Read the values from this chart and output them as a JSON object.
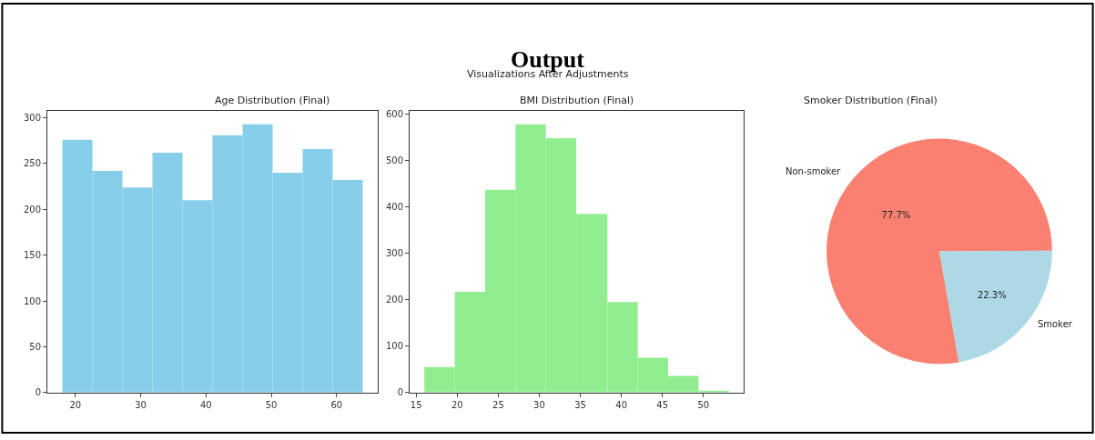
{
  "chart_data": [
    {
      "type": "other",
      "title": "Output",
      "subtitle": "Visualizations After Adjustments"
    },
    {
      "type": "histogram",
      "title": "Age Distribution (Final)",
      "color": "#87ceeb",
      "bins": [
        18,
        22.6,
        27.2,
        31.8,
        36.4,
        41,
        45.6,
        50.2,
        54.8,
        59.4,
        64
      ],
      "values": [
        276,
        242,
        224,
        262,
        210,
        281,
        293,
        240,
        266,
        232
      ],
      "xlim": [
        15.7,
        66.3
      ],
      "xticks": [
        20,
        30,
        40,
        50,
        60
      ],
      "ylim": [
        0,
        307.6
      ],
      "yticks": [
        0,
        50,
        100,
        150,
        200,
        250,
        300
      ]
    },
    {
      "type": "histogram",
      "title": "BMI Distribution (Final)",
      "color": "#90ee90",
      "bins": [
        16,
        19.7,
        23.4,
        27.1,
        30.8,
        34.5,
        38.3,
        42,
        45.7,
        49.4,
        53.1
      ],
      "values": [
        55,
        217,
        437,
        578,
        548,
        385,
        195,
        75,
        36,
        4
      ],
      "xlim": [
        14.2,
        54.9
      ],
      "xticks": [
        15,
        20,
        25,
        30,
        35,
        40,
        45,
        50
      ],
      "ylim": [
        0,
        607
      ],
      "yticks": [
        0,
        100,
        200,
        300,
        400,
        500,
        600
      ]
    },
    {
      "type": "pie",
      "title": "Smoker Distribution (Final)",
      "categories": [
        "Non-smoker",
        "Smoker"
      ],
      "values": [
        77.7,
        22.3
      ],
      "colors": [
        "#fa8072",
        "#add8e6"
      ],
      "value_labels": [
        "77.7%",
        "22.3%"
      ]
    }
  ]
}
